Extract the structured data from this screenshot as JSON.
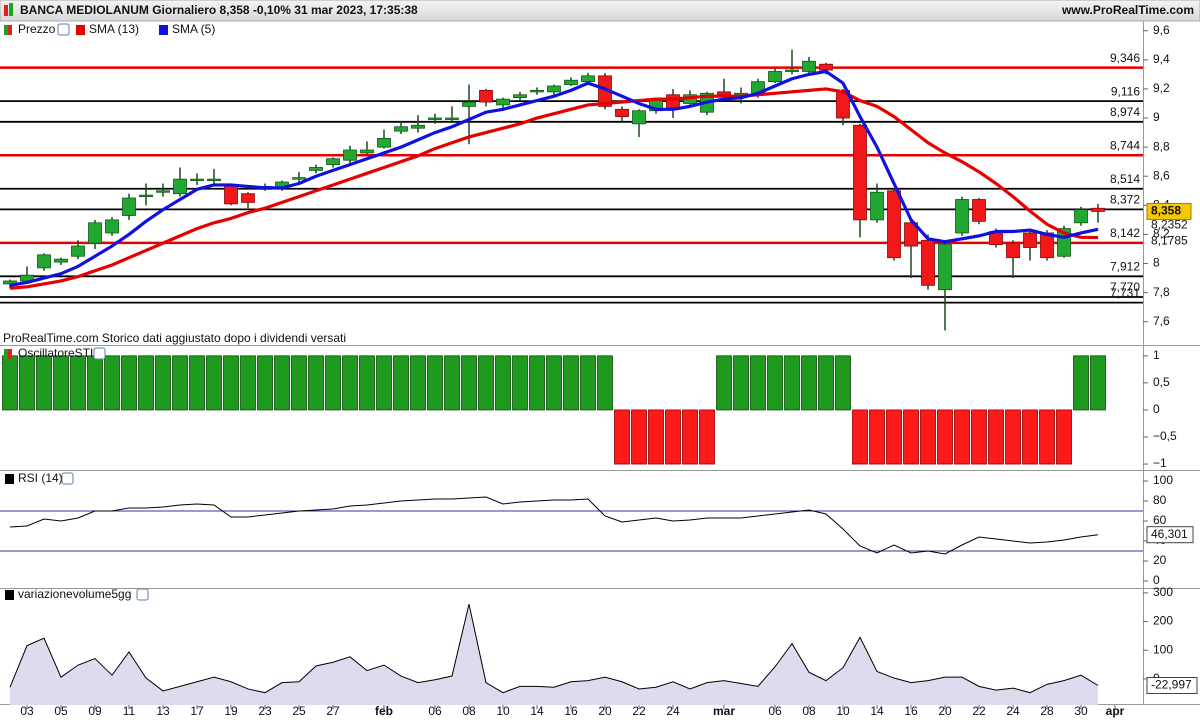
{
  "header": {
    "title": "BANCA MEDIOLANUM Giornaliero 8,358 -0,10% 31 mar 2023, 17:35:38",
    "site": "www.ProRealTime.com"
  },
  "chart_data": [
    {
      "type": "candlestick",
      "legend": [
        "Prezzo"
      ],
      "note": "ProRealTime.com Storico dati aggiustato dopo i dividendi versati",
      "open": [
        7.86,
        7.88,
        7.97,
        8.01,
        8.05,
        8.14,
        8.21,
        8.33,
        8.46,
        8.49,
        8.48,
        8.57,
        8.57,
        8.54,
        8.48,
        8.51,
        8.52,
        8.58,
        8.64,
        8.68,
        8.71,
        8.76,
        8.8,
        8.91,
        8.93,
        8.99,
        8.99,
        9.08,
        9.19,
        9.09,
        9.14,
        9.18,
        9.18,
        9.23,
        9.25,
        9.29,
        9.06,
        8.96,
        9.05,
        9.16,
        9.1,
        9.04,
        9.18,
        9.16,
        9.16,
        9.25,
        9.32,
        9.32,
        9.37,
        9.19,
        8.95,
        8.3,
        8.5,
        8.28,
        8.16,
        7.82,
        8.21,
        8.44,
        8.22,
        8.14,
        8.21,
        8.21,
        8.05,
        8.28,
        8.38,
        null
      ],
      "high": [
        7.89,
        7.98,
        8.07,
        8.04,
        8.16,
        8.3,
        8.32,
        8.48,
        8.55,
        8.55,
        8.66,
        8.62,
        8.65,
        8.55,
        8.49,
        8.55,
        8.57,
        8.63,
        8.68,
        8.73,
        8.81,
        8.84,
        8.92,
        8.98,
        9.02,
        9.03,
        9.08,
        9.23,
        9.2,
        9.14,
        9.18,
        9.21,
        9.23,
        9.28,
        9.31,
        9.31,
        9.08,
        9.06,
        9.14,
        9.2,
        9.19,
        9.18,
        9.27,
        9.21,
        9.27,
        9.34,
        9.47,
        9.42,
        9.38,
        9.2,
        8.96,
        8.55,
        8.51,
        8.3,
        8.2,
        8.14,
        8.46,
        8.45,
        8.24,
        8.16,
        8.24,
        8.23,
        8.26,
        8.39,
        8.41,
        null
      ],
      "low": [
        7.83,
        7.86,
        7.95,
        7.99,
        8.03,
        8.1,
        8.19,
        8.3,
        8.4,
        8.46,
        8.46,
        8.54,
        8.54,
        8.4,
        8.38,
        8.5,
        8.5,
        8.55,
        8.62,
        8.66,
        8.69,
        8.75,
        8.79,
        8.89,
        8.9,
        8.96,
        8.98,
        8.82,
        9.08,
        9.05,
        9.12,
        9.16,
        9.16,
        9.22,
        9.23,
        9.06,
        8.98,
        8.87,
        9.03,
        9.0,
        9.08,
        9.02,
        9.12,
        9.1,
        9.14,
        9.24,
        9.3,
        9.31,
        9.3,
        8.95,
        8.18,
        8.28,
        8.02,
        7.9,
        7.82,
        7.54,
        8.19,
        8.27,
        8.11,
        7.9,
        8.02,
        8.02,
        8.04,
        8.26,
        8.28,
        null
      ],
      "close": [
        7.88,
        7.92,
        8.06,
        8.03,
        8.12,
        8.28,
        8.3,
        8.45,
        8.47,
        8.5,
        8.58,
        8.58,
        8.58,
        8.41,
        8.42,
        8.53,
        8.56,
        8.59,
        8.66,
        8.72,
        8.78,
        8.78,
        8.86,
        8.94,
        8.95,
        9.0,
        9.0,
        9.11,
        9.11,
        9.13,
        9.16,
        9.19,
        9.22,
        9.26,
        9.29,
        9.08,
        9.01,
        9.05,
        9.12,
        9.07,
        9.16,
        9.17,
        9.16,
        9.17,
        9.25,
        9.32,
        9.33,
        9.39,
        9.33,
        9.0,
        8.3,
        8.49,
        8.04,
        8.12,
        7.85,
        8.13,
        8.44,
        8.29,
        8.13,
        8.04,
        8.11,
        8.04,
        8.24,
        8.37,
        8.358,
        null
      ],
      "close_label": "8,358",
      "series": [
        {
          "name": "SMA (13)",
          "color": "#e60000",
          "last_label": "8,1785",
          "values": [
            7.83,
            7.84,
            7.86,
            7.88,
            7.91,
            7.95,
            7.99,
            8.04,
            8.09,
            8.14,
            8.19,
            8.24,
            8.28,
            8.31,
            8.35,
            8.38,
            8.42,
            8.46,
            8.5,
            8.54,
            8.58,
            8.62,
            8.66,
            8.7,
            8.74,
            8.79,
            8.83,
            8.87,
            8.9,
            8.93,
            8.96,
            9.0,
            9.03,
            9.06,
            9.09,
            9.1,
            9.11,
            9.12,
            9.13,
            9.13,
            9.14,
            9.15,
            9.15,
            9.15,
            9.16,
            9.17,
            9.18,
            9.19,
            9.2,
            9.18,
            9.12,
            9.08,
            9.01,
            8.92,
            8.83,
            8.76,
            8.7,
            8.63,
            8.55,
            8.46,
            8.36,
            8.27,
            8.21,
            8.18,
            8.1785,
            null
          ]
        },
        {
          "name": "SMA (5)",
          "color": "#1010e0",
          "last_label": "8,2352",
          "values": [
            7.85,
            7.87,
            7.9,
            7.93,
            7.98,
            8.05,
            8.12,
            8.2,
            8.29,
            8.37,
            8.44,
            8.51,
            8.54,
            8.54,
            8.53,
            8.52,
            8.52,
            8.55,
            8.6,
            8.64,
            8.68,
            8.72,
            8.76,
            8.8,
            8.85,
            8.9,
            8.94,
            8.99,
            9.04,
            9.06,
            9.09,
            9.12,
            9.15,
            9.19,
            9.24,
            9.2,
            9.15,
            9.1,
            9.06,
            9.06,
            9.08,
            9.11,
            9.13,
            9.14,
            9.17,
            9.22,
            9.27,
            9.3,
            9.32,
            9.24,
            9.01,
            8.8,
            8.55,
            8.3,
            8.17,
            8.15,
            8.17,
            8.19,
            8.22,
            8.22,
            8.23,
            8.2,
            8.18,
            8.21,
            8.2352,
            null
          ]
        }
      ],
      "levels": [
        {
          "value": 9.346,
          "label": "9,346",
          "color": "#e60000"
        },
        {
          "value": 9.116,
          "label": "9,116",
          "color": "#000000"
        },
        {
          "value": 8.974,
          "label": "8,974",
          "color": "#000000"
        },
        {
          "value": 8.744,
          "label": "8,744",
          "color": "#e60000"
        },
        {
          "value": 8.514,
          "label": "8,514",
          "color": "#000000"
        },
        {
          "value": 8.372,
          "label": "8,372",
          "color": "#000000"
        },
        {
          "value": 8.142,
          "label": "8,142",
          "color": "#e60000"
        },
        {
          "value": 7.912,
          "label": "7,912",
          "color": "#000000"
        },
        {
          "value": 7.77,
          "label": "7,770",
          "color": "#000000"
        },
        {
          "value": 7.731,
          "label": "7,731",
          "color": "#000000"
        }
      ],
      "up_color": "#22a832",
      "down_color": "#f01818",
      "ylim": [
        7.44,
        9.66
      ],
      "yticks": [
        {
          "value": 9.6,
          "label": "9,6"
        },
        {
          "value": 9.4,
          "label": "9,4"
        },
        {
          "value": 9.2,
          "label": "9,2"
        },
        9,
        {
          "value": 8.8,
          "label": "8,8"
        },
        {
          "value": 8.6,
          "label": "8,6"
        },
        {
          "value": 8.4,
          "label": "8,4"
        },
        {
          "value": 8.2,
          "label": "8,2"
        },
        8,
        {
          "value": 7.8,
          "label": "7,8"
        },
        {
          "value": 7.6,
          "label": "7,6"
        }
      ]
    },
    {
      "type": "bar",
      "title": "OscillatoreSTI",
      "up_color": "#1e9a1e",
      "down_color": "#ff1a1a",
      "values": [
        1,
        1,
        1,
        1,
        1,
        1,
        1,
        1,
        1,
        1,
        1,
        1,
        1,
        1,
        1,
        1,
        1,
        1,
        1,
        1,
        1,
        1,
        1,
        1,
        1,
        1,
        1,
        1,
        1,
        1,
        1,
        1,
        1,
        1,
        1,
        1,
        -1,
        -1,
        -1,
        -1,
        -1,
        -1,
        1,
        1,
        1,
        1,
        1,
        1,
        1,
        1,
        -1,
        -1,
        -1,
        -1,
        -1,
        -1,
        -1,
        -1,
        -1,
        -1,
        -1,
        -1,
        -1,
        1,
        1,
        null
      ],
      "ylim": [
        -1.11,
        1.2
      ],
      "yticks": [
        1,
        {
          "value": 0.5,
          "label": "0,5"
        },
        0,
        {
          "value": -0.5,
          "label": "−0,5"
        },
        {
          "value": -1,
          "label": "−1"
        }
      ]
    },
    {
      "type": "line",
      "title": "RSI (14)",
      "color": "#000000",
      "bands": [
        70,
        30
      ],
      "band_color": "#3333aa",
      "values": [
        54,
        55,
        62,
        60,
        63,
        70,
        70,
        73,
        73,
        74,
        76,
        77,
        76,
        64,
        64,
        66,
        68,
        70,
        71,
        72,
        75,
        76,
        78,
        80,
        81,
        82,
        82,
        83,
        84,
        77,
        79,
        80,
        81,
        81,
        82,
        65,
        59,
        61,
        63,
        60,
        61,
        63,
        63,
        63,
        65,
        67,
        69,
        71,
        67,
        52,
        35,
        28,
        36,
        28,
        30,
        27,
        36,
        44,
        42,
        40,
        38,
        39,
        41,
        44,
        46.301,
        null
      ],
      "last_label": "46,301",
      "ylim": [
        -7,
        111
      ],
      "yticks": [
        100,
        80,
        60,
        40,
        20,
        0
      ]
    },
    {
      "type": "area",
      "title": "variazionevolume5gg",
      "color": "#000000",
      "fill": "#dcdcee",
      "categories": [
        null,
        "03",
        null,
        "05",
        null,
        "09",
        null,
        "11",
        null,
        "13",
        null,
        "17",
        null,
        "19",
        null,
        "23",
        null,
        "25",
        null,
        "27",
        null,
        null,
        "feb",
        null,
        null,
        "06",
        null,
        "08",
        null,
        "10",
        null,
        "14",
        null,
        "16",
        null,
        "20",
        null,
        "22",
        null,
        "24",
        null,
        null,
        "mar",
        null,
        null,
        "06",
        null,
        "08",
        null,
        "10",
        null,
        "14",
        null,
        "16",
        null,
        "20",
        null,
        "22",
        null,
        "24",
        null,
        "28",
        null,
        "30",
        null,
        "apr"
      ],
      "values": [
        -29,
        116,
        142,
        6,
        48,
        71,
        13,
        94,
        3,
        -42,
        -26,
        -10,
        6,
        -10,
        -35,
        -48,
        -13,
        -10,
        45,
        58,
        77,
        29,
        48,
        10,
        -13,
        -3,
        10,
        261,
        -13,
        -48,
        -26,
        -26,
        -29,
        -10,
        -6,
        6,
        -10,
        -35,
        -29,
        -10,
        -35,
        -13,
        -6,
        -16,
        -26,
        42,
        123,
        23,
        -6,
        39,
        145,
        26,
        3,
        -13,
        -6,
        6,
        6,
        -26,
        -39,
        -32,
        -48,
        -19,
        -6,
        13,
        -22.997,
        null
      ],
      "last_label": "-22,997",
      "ylim": [
        -91,
        317
      ],
      "yticks": [
        300,
        200,
        100,
        0
      ]
    }
  ]
}
